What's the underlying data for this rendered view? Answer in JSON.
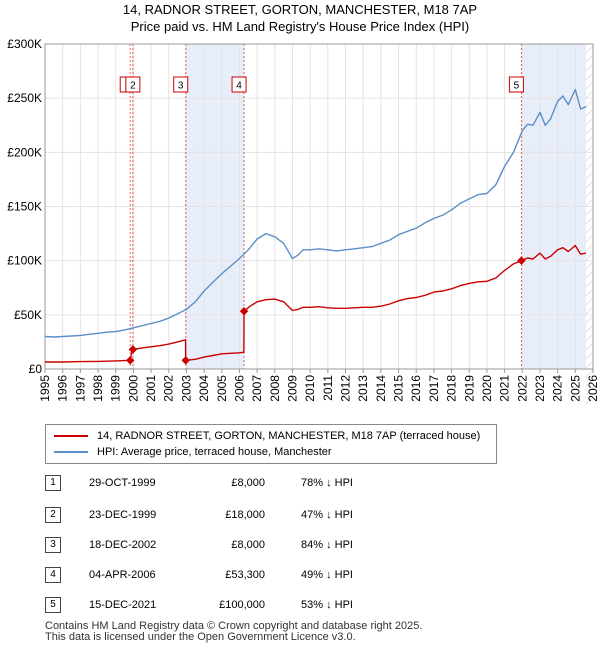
{
  "title_line1": "14, RADNOR STREET, GORTON, MANCHESTER, M18 7AP",
  "title_line2": "Price paid vs. HM Land Registry's House Price Index (HPI)",
  "colors": {
    "property": "#cc0000",
    "hpi": "#5b8fc9",
    "shade": "#e8eef9",
    "marker_border": "#cc0000"
  },
  "legend": {
    "property_label": "14, RADNOR STREET, GORTON, MANCHESTER, M18 7AP (terraced house)",
    "hpi_label": "HPI: Average price, terraced house, Manchester"
  },
  "chart_data": {
    "type": "line",
    "ylim": [
      0,
      300000
    ],
    "xlim": [
      1995,
      2026
    ],
    "y_ticks": [
      {
        "value": 0,
        "label": "£0"
      },
      {
        "value": 50000,
        "label": "£50K"
      },
      {
        "value": 100000,
        "label": "£100K"
      },
      {
        "value": 150000,
        "label": "£150K"
      },
      {
        "value": 200000,
        "label": "£200K"
      },
      {
        "value": 250000,
        "label": "£250K"
      },
      {
        "value": 300000,
        "label": "£300K"
      }
    ],
    "x_ticks": [
      "1995",
      "1996",
      "1997",
      "1998",
      "1999",
      "2000",
      "2001",
      "2002",
      "2003",
      "2004",
      "2005",
      "2006",
      "2007",
      "2008",
      "2009",
      "2010",
      "2011",
      "2012",
      "2013",
      "2014",
      "2015",
      "2016",
      "2017",
      "2018",
      "2019",
      "2020",
      "2021",
      "2022",
      "2023",
      "2024",
      "2025",
      "2026"
    ],
    "shaded_ranges": [
      [
        2002.96,
        2006.26
      ],
      [
        2021.95,
        2025.6
      ]
    ],
    "series": [
      {
        "name": "HPI: Average price, terraced house, Manchester",
        "x": [
          1995.0,
          1995.5,
          1996.0,
          1996.5,
          1997.0,
          1997.5,
          1998.0,
          1998.5,
          1999.0,
          1999.5,
          2000.0,
          2000.5,
          2001.0,
          2001.5,
          2002.0,
          2002.5,
          2003.0,
          2003.5,
          2004.0,
          2004.5,
          2005.0,
          2005.5,
          2006.0,
          2006.5,
          2007.0,
          2007.5,
          2008.0,
          2008.5,
          2009.0,
          2009.3,
          2009.6,
          2010.0,
          2010.5,
          2011.0,
          2011.5,
          2012.0,
          2012.5,
          2013.0,
          2013.5,
          2014.0,
          2014.5,
          2015.0,
          2015.5,
          2016.0,
          2016.5,
          2017.0,
          2017.5,
          2018.0,
          2018.5,
          2019.0,
          2019.5,
          2020.0,
          2020.5,
          2021.0,
          2021.5,
          2022.0,
          2022.3,
          2022.6,
          2023.0,
          2023.3,
          2023.6,
          2024.0,
          2024.3,
          2024.6,
          2025.0,
          2025.3,
          2025.6
        ],
        "values": [
          30000,
          29500,
          30000,
          30500,
          31000,
          32000,
          33000,
          34000,
          34500,
          36000,
          38000,
          40000,
          42000,
          44000,
          47000,
          51000,
          55000,
          62000,
          72000,
          80000,
          88000,
          95000,
          102000,
          110000,
          120000,
          125000,
          122000,
          116000,
          102000,
          105000,
          110000,
          110000,
          111000,
          110000,
          109000,
          110000,
          111000,
          112000,
          113000,
          116000,
          119000,
          124000,
          127000,
          130000,
          135000,
          139000,
          142000,
          147000,
          153000,
          157000,
          161000,
          162000,
          170000,
          187000,
          200000,
          220000,
          226000,
          225000,
          237000,
          225000,
          231000,
          247000,
          252000,
          244000,
          258000,
          240000,
          242000
        ]
      },
      {
        "name": "14, RADNOR STREET, GORTON, MANCHESTER, M18 7AP (terraced house)",
        "x": [
          1995.0,
          1996.0,
          1997.0,
          1998.0,
          1999.0,
          1999.82,
          1999.82,
          1999.97,
          2000.5,
          2001.0,
          2001.5,
          2002.0,
          2002.5,
          2002.95,
          2002.96,
          2003.5,
          2004.0,
          2004.5,
          2005.0,
          2005.5,
          2006.0,
          2006.25,
          2006.26,
          2006.6,
          2007.0,
          2007.5,
          2008.0,
          2008.5,
          2009.0,
          2009.3,
          2009.6,
          2010.0,
          2010.5,
          2011.0,
          2011.5,
          2012.0,
          2012.5,
          2013.0,
          2013.5,
          2014.0,
          2014.5,
          2015.0,
          2015.5,
          2016.0,
          2016.5,
          2017.0,
          2017.5,
          2018.0,
          2018.5,
          2019.0,
          2019.5,
          2020.0,
          2020.5,
          2021.0,
          2021.5,
          2021.95,
          2022.3,
          2022.6,
          2023.0,
          2023.3,
          2023.6,
          2024.0,
          2024.3,
          2024.6,
          2025.0,
          2025.3,
          2025.6
        ],
        "values": [
          6500,
          6500,
          6800,
          7000,
          7500,
          8000,
          10000,
          18000,
          19500,
          20500,
          21500,
          23000,
          25000,
          27000,
          8000,
          9000,
          11000,
          12500,
          14000,
          14500,
          15000,
          15500,
          53300,
          58000,
          62000,
          64000,
          64500,
          62000,
          54000,
          55000,
          57000,
          57000,
          57500,
          56500,
          56000,
          56000,
          56500,
          57000,
          57000,
          58000,
          60000,
          63000,
          65000,
          66000,
          68000,
          71000,
          72000,
          74000,
          77000,
          79000,
          80500,
          81000,
          84000,
          91000,
          97000,
          100000,
          102500,
          101500,
          107000,
          101500,
          104000,
          110000,
          112000,
          108500,
          114000,
          106000,
          107000
        ]
      }
    ],
    "sales": [
      {
        "num": "1",
        "date": "29-OCT-1999",
        "price": "£8,000",
        "hpi": "78% ↓ HPI",
        "year": 1999.82,
        "value": 8000
      },
      {
        "num": "2",
        "date": "23-DEC-1999",
        "price": "£18,000",
        "hpi": "47% ↓ HPI",
        "year": 1999.97,
        "value": 18000
      },
      {
        "num": "3",
        "date": "18-DEC-2002",
        "price": "£8,000",
        "hpi": "84% ↓ HPI",
        "year": 2002.96,
        "value": 8000
      },
      {
        "num": "4",
        "date": "04-APR-2006",
        "price": "£53,300",
        "hpi": "49% ↓ HPI",
        "year": 2006.26,
        "value": 53300
      },
      {
        "num": "5",
        "date": "15-DEC-2021",
        "price": "£100,000",
        "hpi": "53% ↓ HPI",
        "year": 2021.95,
        "value": 100000
      }
    ]
  },
  "footer_line1": "Contains HM Land Registry data © Crown copyright and database right 2025.",
  "footer_line2": "This data is licensed under the Open Government Licence v3.0."
}
